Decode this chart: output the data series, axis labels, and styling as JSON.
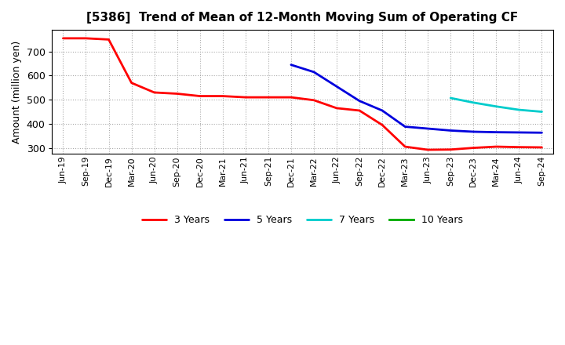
{
  "title": "[5386]  Trend of Mean of 12-Month Moving Sum of Operating CF",
  "ylabel": "Amount (million yen)",
  "ylim": [
    275,
    790
  ],
  "yticks": [
    300,
    400,
    500,
    600,
    700
  ],
  "background_color": "#ffffff",
  "plot_bg_color": "#ffffff",
  "grid_color": "#aaaaaa",
  "x_labels": [
    "Jun-19",
    "Sep-19",
    "Dec-19",
    "Mar-20",
    "Jun-20",
    "Sep-20",
    "Dec-20",
    "Mar-21",
    "Jun-21",
    "Sep-21",
    "Dec-21",
    "Mar-22",
    "Jun-22",
    "Sep-22",
    "Dec-22",
    "Mar-23",
    "Jun-23",
    "Sep-23",
    "Dec-23",
    "Mar-24",
    "Jun-24",
    "Sep-24"
  ],
  "series": {
    "3 Years": {
      "color": "#ff0000",
      "data_x": [
        0,
        1,
        2,
        3,
        4,
        5,
        6,
        7,
        8,
        9,
        10,
        11,
        12,
        13,
        14,
        15,
        16,
        17,
        18,
        19,
        20,
        21
      ],
      "data_y": [
        755,
        755,
        750,
        570,
        530,
        525,
        515,
        515,
        510,
        510,
        510,
        498,
        465,
        455,
        395,
        305,
        292,
        293,
        300,
        305,
        303,
        302
      ]
    },
    "5 Years": {
      "color": "#0000dd",
      "data_x": [
        10,
        11,
        12,
        13,
        14,
        15,
        16,
        17,
        18,
        19,
        20,
        21
      ],
      "data_y": [
        645,
        615,
        555,
        495,
        455,
        388,
        380,
        372,
        367,
        365,
        364,
        363
      ]
    },
    "7 Years": {
      "color": "#00cccc",
      "data_x": [
        17,
        18,
        19,
        20,
        21
      ],
      "data_y": [
        507,
        488,
        472,
        458,
        450
      ]
    },
    "10 Years": {
      "color": "#00aa00",
      "data_x": [],
      "data_y": []
    }
  },
  "legend_order": [
    "3 Years",
    "5 Years",
    "7 Years",
    "10 Years"
  ]
}
